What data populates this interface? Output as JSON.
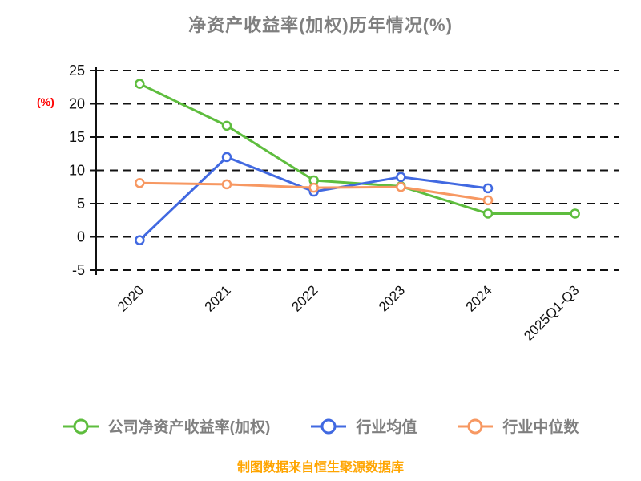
{
  "chart_data": {
    "type": "line",
    "title": "净资产收益率(加权)历年情况(%)",
    "categories": [
      "2020",
      "2021",
      "2022",
      "2023",
      "2024",
      "2025Q1-Q3"
    ],
    "series": [
      {
        "name": "公司净资产收益率(加权)",
        "color": "#5ebd3e",
        "values": [
          23.0,
          16.7,
          8.5,
          7.6,
          3.5,
          3.5
        ]
      },
      {
        "name": "行业均值",
        "color": "#4169e1",
        "values": [
          -0.5,
          12.0,
          6.8,
          9.0,
          7.3,
          null
        ]
      },
      {
        "name": "行业中位数",
        "color": "#f79862",
        "values": [
          8.1,
          7.9,
          7.4,
          7.5,
          5.5,
          null
        ]
      }
    ],
    "ylabel": "(%)",
    "ylabel_color": "#ff0000",
    "ylim": [
      -5,
      25
    ],
    "yticks": [
      25,
      20,
      15,
      10,
      5,
      0,
      -5
    ],
    "grid": "dashed horizontal",
    "legend_position": "bottom"
  },
  "footer": {
    "source_note": "制图数据来自恒生聚源数据库",
    "color": "#ffa500"
  },
  "style": {
    "title_color": "#7f7f7f",
    "axis_color": "#111111"
  }
}
